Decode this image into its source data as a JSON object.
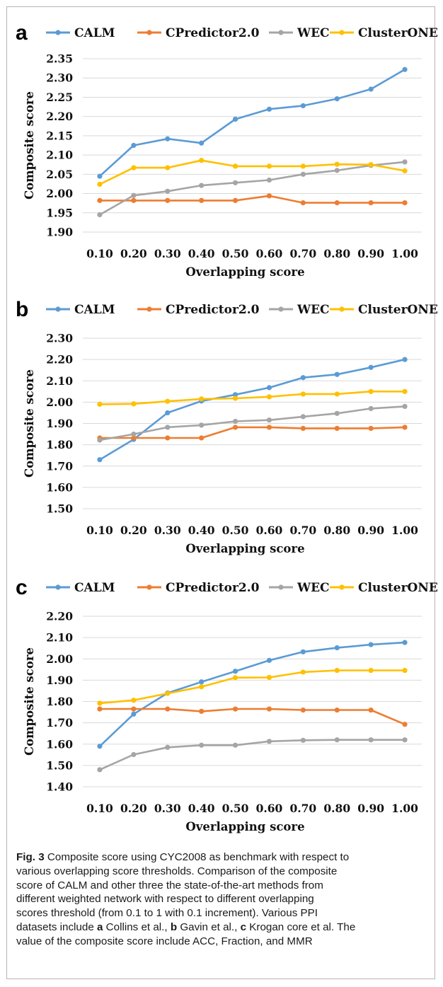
{
  "colors": {
    "CALM": "#5b9bd5",
    "CPredictor2.0": "#ed7d31",
    "WEC": "#a5a5a5",
    "ClusterONE": "#ffc000",
    "grid": "#d9d9d9"
  },
  "chart_data": [
    {
      "panel": "a",
      "type": "line",
      "xlabel": "Overlapping score",
      "ylabel": "Composite score",
      "x": [
        "0.10",
        "0.20",
        "0.30",
        "0.40",
        "0.50",
        "0.60",
        "0.70",
        "0.80",
        "0.90",
        "1.00"
      ],
      "ylim": [
        1.9,
        2.35
      ],
      "ystep": 0.05,
      "grid": true,
      "legend": "top",
      "series": [
        {
          "name": "CALM",
          "values": [
            2.045,
            2.125,
            2.142,
            2.131,
            2.193,
            2.219,
            2.228,
            2.246,
            2.271,
            2.322
          ]
        },
        {
          "name": "CPredictor2.0",
          "values": [
            1.982,
            1.982,
            1.982,
            1.982,
            1.982,
            1.994,
            1.976,
            1.976,
            1.976,
            1.976
          ]
        },
        {
          "name": "WEC",
          "values": [
            1.945,
            1.995,
            2.006,
            2.021,
            2.028,
            2.035,
            2.05,
            2.06,
            2.073,
            2.082
          ]
        },
        {
          "name": "ClusterONE",
          "values": [
            2.024,
            2.067,
            2.067,
            2.086,
            2.071,
            2.071,
            2.071,
            2.076,
            2.075,
            2.059
          ]
        }
      ]
    },
    {
      "panel": "b",
      "type": "line",
      "xlabel": "Overlapping score",
      "ylabel": "Composite score",
      "x": [
        "0.10",
        "0.20",
        "0.30",
        "0.40",
        "0.50",
        "0.60",
        "0.70",
        "0.80",
        "0.90",
        "1.00"
      ],
      "ylim": [
        1.5,
        2.3
      ],
      "ystep": 0.1,
      "grid": true,
      "legend": "top",
      "series": [
        {
          "name": "CALM",
          "values": [
            1.73,
            1.825,
            1.95,
            2.005,
            2.035,
            2.068,
            2.115,
            2.13,
            2.163,
            2.2
          ]
        },
        {
          "name": "CPredictor2.0",
          "values": [
            1.832,
            1.832,
            1.832,
            1.832,
            1.882,
            1.882,
            1.877,
            1.877,
            1.877,
            1.882
          ]
        },
        {
          "name": "WEC",
          "values": [
            1.822,
            1.85,
            1.882,
            1.892,
            1.91,
            1.916,
            1.932,
            1.947,
            1.97,
            1.98
          ]
        },
        {
          "name": "ClusterONE",
          "values": [
            1.99,
            1.992,
            2.004,
            2.015,
            2.018,
            2.025,
            2.038,
            2.038,
            2.05,
            2.05
          ]
        }
      ]
    },
    {
      "panel": "c",
      "type": "line",
      "xlabel": "Overlapping score",
      "ylabel": "Composite score",
      "x": [
        "0.10",
        "0.20",
        "0.30",
        "0.40",
        "0.50",
        "0.60",
        "0.70",
        "0.80",
        "0.90",
        "1.00"
      ],
      "ylim": [
        1.4,
        2.2
      ],
      "ystep": 0.1,
      "grid": true,
      "legend": "top",
      "series": [
        {
          "name": "CALM",
          "values": [
            1.59,
            1.741,
            1.84,
            1.892,
            1.942,
            1.993,
            2.033,
            2.052,
            2.067,
            2.077
          ]
        },
        {
          "name": "CPredictor2.0",
          "values": [
            1.765,
            1.765,
            1.765,
            1.754,
            1.765,
            1.765,
            1.76,
            1.76,
            1.76,
            1.693
          ]
        },
        {
          "name": "WEC",
          "values": [
            1.48,
            1.551,
            1.585,
            1.595,
            1.595,
            1.613,
            1.618,
            1.62,
            1.62,
            1.62
          ]
        },
        {
          "name": "ClusterONE",
          "values": [
            1.792,
            1.806,
            1.838,
            1.869,
            1.912,
            1.913,
            1.938,
            1.946,
            1.946,
            1.946
          ]
        }
      ]
    }
  ],
  "caption": {
    "figure_label": "Fig. 3",
    "lines": [
      [
        {
          "t": "Composite score using CYC2008 as benchmark with respect to",
          "b": false
        }
      ],
      [
        {
          "t": "various overlapping score thresholds. Comparison of the composite",
          "b": false
        }
      ],
      [
        {
          "t": "score of CALM and other three the state-of-the-art methods from",
          "b": false
        }
      ],
      [
        {
          "t": "different weighted network with respect to different overlapping",
          "b": false
        }
      ],
      [
        {
          "t": "scores threshold (from 0.1 to 1 with 0.1 increment). Various PPI",
          "b": false
        }
      ],
      [
        {
          "t": "datasets include ",
          "b": false
        },
        {
          "t": "a",
          "b": true
        },
        {
          "t": " Collins et al., ",
          "b": false
        },
        {
          "t": "b",
          "b": true
        },
        {
          "t": " Gavin et al., ",
          "b": false
        },
        {
          "t": "c",
          "b": true
        },
        {
          "t": " Krogan core et al. The",
          "b": false
        }
      ],
      [
        {
          "t": "value of the composite score include ACC, Fraction, and MMR",
          "b": false
        }
      ]
    ]
  }
}
